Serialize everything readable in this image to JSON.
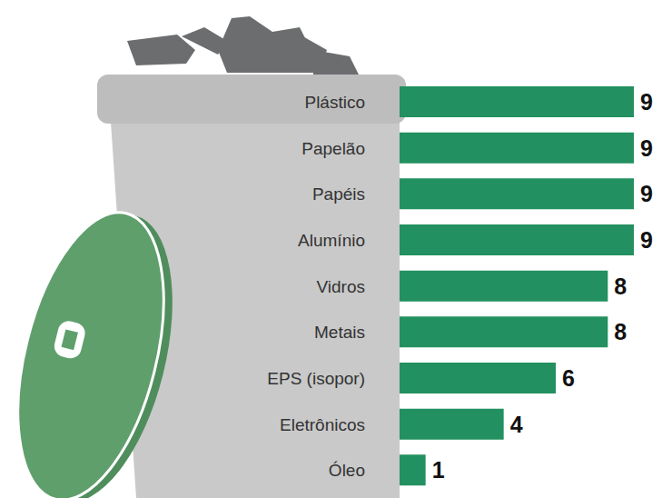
{
  "chart_data": {
    "type": "bar",
    "orientation": "horizontal",
    "categories": [
      "Plástico",
      "Papelão",
      "Papéis",
      "Alumínio",
      "Vidros",
      "Metais",
      "EPS (isopor)",
      "Eletrônicos",
      "Óleo"
    ],
    "values": [
      9,
      9,
      9,
      9,
      8,
      8,
      6,
      4,
      1
    ],
    "color": "#229060",
    "xlim": [
      0,
      9
    ],
    "data_labels": true,
    "tick_labels": "y",
    "grid": false
  }
}
